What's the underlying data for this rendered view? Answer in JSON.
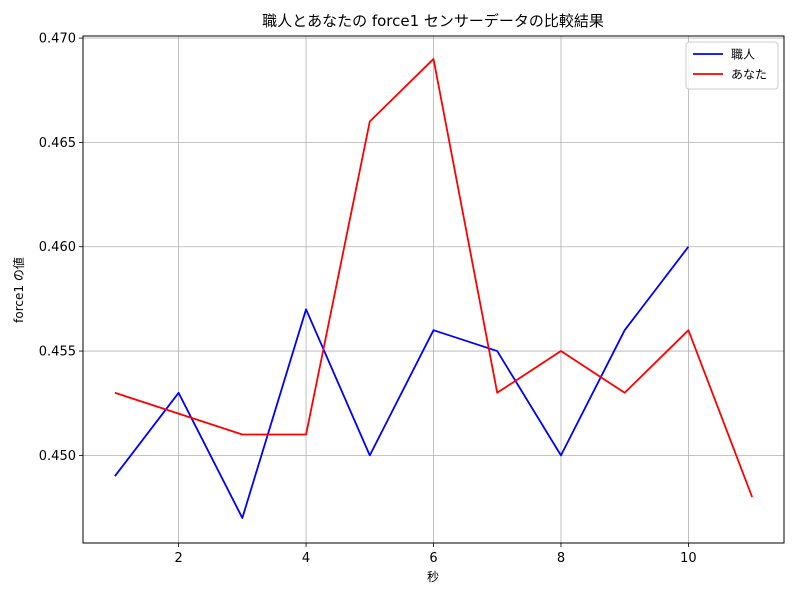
{
  "chart_data": {
    "type": "line",
    "title": "職人とあなたの force1 センサーデータの比較結果",
    "xlabel": "秒",
    "ylabel": "force1 の値",
    "xlim": [
      0.5,
      11.5
    ],
    "ylim": [
      0.4458,
      0.4701
    ],
    "x_ticks": [
      2,
      4,
      6,
      8,
      10
    ],
    "y_ticks": [
      0.45,
      0.455,
      0.46,
      0.465,
      0.47
    ],
    "x_tick_labels": [
      "2",
      "4",
      "6",
      "8",
      "10"
    ],
    "y_tick_labels": [
      "0.450",
      "0.455",
      "0.460",
      "0.465",
      "0.470"
    ],
    "grid": true,
    "legend_position": "top-right",
    "series": [
      {
        "name": "職人",
        "color": "#0000ff",
        "x": [
          1,
          2,
          3,
          4,
          5,
          6,
          7,
          8,
          9,
          10
        ],
        "y": [
          0.449,
          0.453,
          0.447,
          0.457,
          0.45,
          0.456,
          0.455,
          0.45,
          0.456,
          0.46
        ]
      },
      {
        "name": "あなた",
        "color": "#ff0000",
        "x": [
          1,
          2,
          3,
          4,
          5,
          6,
          7,
          8,
          9,
          10,
          11
        ],
        "y": [
          0.453,
          0.452,
          0.451,
          0.451,
          0.466,
          0.469,
          0.453,
          0.455,
          0.453,
          0.456,
          0.448
        ]
      }
    ]
  }
}
